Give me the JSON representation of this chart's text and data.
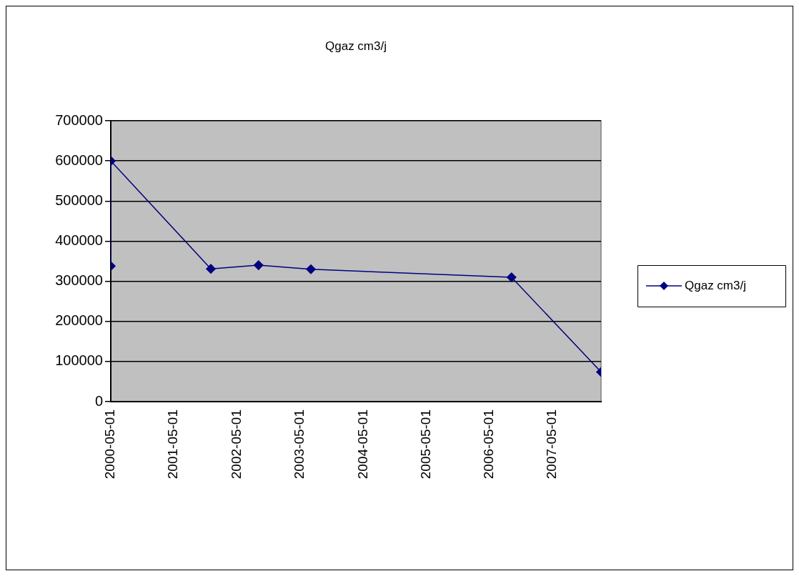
{
  "chart_data": {
    "type": "line",
    "title": "Qgaz cm3/j",
    "x": [
      "2000-05-01",
      "2000-05-01",
      "2001-12-01",
      "2002-09-03",
      "2003-07-03",
      "2006-09-06",
      "2008-02-06"
    ],
    "series": [
      {
        "name": "Qgaz cm3/j",
        "color": "#000080",
        "values": [
          338000,
          600000,
          331000,
          340000,
          330000,
          310000,
          74000
        ]
      }
    ],
    "xlim": [
      "2000-05-01",
      "2008-02-06"
    ],
    "xticks": [
      "2000-05-01",
      "2001-05-01",
      "2002-05-01",
      "2003-05-01",
      "2004-05-01",
      "2005-05-01",
      "2006-05-01",
      "2007-05-01"
    ],
    "ylim": [
      0,
      700000
    ],
    "yticks": [
      0,
      100000,
      200000,
      300000,
      400000,
      500000,
      600000,
      700000
    ],
    "grid": "y",
    "legend": "right",
    "marker": "diamond",
    "line_style": "solid"
  }
}
